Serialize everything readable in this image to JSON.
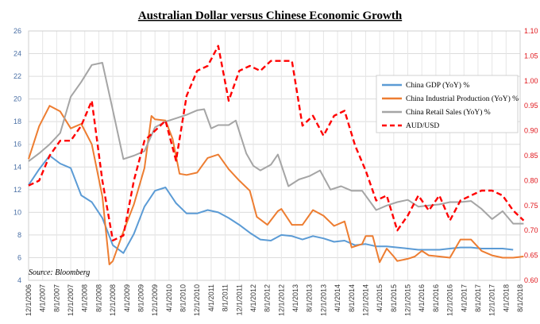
{
  "chart_data": {
    "type": "line",
    "title": "Australian Dollar versus Chinese Economic Growth",
    "source": "Source: Bloomberg",
    "x_tick_labels": [
      "12/1/2006",
      "4/1/2007",
      "8/1/2007",
      "12/1/2007",
      "4/1/2008",
      "8/1/2008",
      "12/1/2008",
      "4/1/2009",
      "8/1/2009",
      "12/1/2009",
      "4/1/2010",
      "8/1/2010",
      "12/1/2010",
      "4/1/2011",
      "8/1/2011",
      "12/1/2011",
      "4/1/2012",
      "8/1/2012",
      "12/1/2012",
      "4/1/2013",
      "8/1/2013",
      "12/1/2013",
      "4/1/2014",
      "8/1/2014",
      "12/1/2014",
      "4/1/2015",
      "8/1/2015",
      "12/1/2015",
      "4/1/2016",
      "8/1/2016",
      "12/1/2016",
      "4/1/2017",
      "8/1/2017",
      "12/1/2017",
      "4/1/2018",
      "8/1/2018"
    ],
    "left_axis": {
      "min": 4,
      "max": 26,
      "ticks": [
        4,
        6,
        8,
        10,
        12,
        14,
        16,
        18,
        20,
        22,
        24,
        26
      ]
    },
    "right_axis": {
      "min": 0.6,
      "max": 1.1,
      "ticks": [
        "0.60",
        "0.65",
        "0.70",
        "0.75",
        "0.80",
        "0.85",
        "0.90",
        "0.95",
        "1.00",
        "1.05",
        "1.10"
      ]
    },
    "grid": true,
    "legend_position": "right",
    "series": [
      {
        "name": "China GDP (YoY) %",
        "color": "#5b9bd5",
        "axis": "left",
        "style": "solid",
        "points": [
          [
            "12/1/2006",
            12.4
          ],
          [
            "3/1/2007",
            13.8
          ],
          [
            "6/1/2007",
            15.0
          ],
          [
            "9/1/2007",
            14.3
          ],
          [
            "12/1/2007",
            13.9
          ],
          [
            "3/1/2008",
            11.5
          ],
          [
            "6/1/2008",
            10.9
          ],
          [
            "9/1/2008",
            9.5
          ],
          [
            "12/1/2008",
            7.1
          ],
          [
            "3/1/2009",
            6.4
          ],
          [
            "6/1/2009",
            8.1
          ],
          [
            "9/1/2009",
            10.5
          ],
          [
            "12/1/2009",
            11.9
          ],
          [
            "3/1/2010",
            12.2
          ],
          [
            "6/1/2010",
            10.8
          ],
          [
            "9/1/2010",
            9.9
          ],
          [
            "12/1/2010",
            9.9
          ],
          [
            "3/1/2011",
            10.2
          ],
          [
            "6/1/2011",
            10.0
          ],
          [
            "9/1/2011",
            9.5
          ],
          [
            "12/1/2011",
            8.9
          ],
          [
            "3/1/2012",
            8.2
          ],
          [
            "6/1/2012",
            7.6
          ],
          [
            "9/1/2012",
            7.5
          ],
          [
            "12/1/2012",
            8.0
          ],
          [
            "3/1/2013",
            7.9
          ],
          [
            "6/1/2013",
            7.6
          ],
          [
            "9/1/2013",
            7.9
          ],
          [
            "12/1/2013",
            7.7
          ],
          [
            "3/1/2014",
            7.4
          ],
          [
            "6/1/2014",
            7.5
          ],
          [
            "9/1/2014",
            7.1
          ],
          [
            "12/1/2014",
            7.2
          ],
          [
            "3/1/2015",
            7.0
          ],
          [
            "6/1/2015",
            7.0
          ],
          [
            "9/1/2015",
            6.9
          ],
          [
            "12/1/2015",
            6.8
          ],
          [
            "3/1/2016",
            6.7
          ],
          [
            "6/1/2016",
            6.7
          ],
          [
            "9/1/2016",
            6.7
          ],
          [
            "12/1/2016",
            6.8
          ],
          [
            "3/1/2017",
            6.9
          ],
          [
            "6/1/2017",
            6.9
          ],
          [
            "9/1/2017",
            6.8
          ],
          [
            "12/1/2017",
            6.8
          ],
          [
            "3/1/2018",
            6.8
          ],
          [
            "6/1/2018",
            6.7
          ]
        ]
      },
      {
        "name": "China Industrial Production (YoY) %",
        "color": "#ed7d31",
        "axis": "left",
        "style": "solid",
        "points": [
          [
            "12/1/2006",
            14.7
          ],
          [
            "3/1/2007",
            17.6
          ],
          [
            "6/1/2007",
            19.4
          ],
          [
            "9/1/2007",
            18.9
          ],
          [
            "12/1/2007",
            17.4
          ],
          [
            "3/1/2008",
            17.8
          ],
          [
            "6/1/2008",
            16.0
          ],
          [
            "9/1/2008",
            11.4
          ],
          [
            "11/1/2008",
            5.4
          ],
          [
            "12/1/2008",
            5.7
          ],
          [
            "3/1/2009",
            8.3
          ],
          [
            "6/1/2009",
            10.7
          ],
          [
            "9/1/2009",
            13.9
          ],
          [
            "11/1/2009",
            18.5
          ],
          [
            "12/1/2009",
            18.2
          ],
          [
            "3/1/2010",
            18.1
          ],
          [
            "5/1/2010",
            16.5
          ],
          [
            "7/1/2010",
            13.4
          ],
          [
            "9/1/2010",
            13.3
          ],
          [
            "12/1/2010",
            13.5
          ],
          [
            "3/1/2011",
            14.8
          ],
          [
            "6/1/2011",
            15.1
          ],
          [
            "9/1/2011",
            13.8
          ],
          [
            "12/1/2011",
            12.8
          ],
          [
            "3/1/2012",
            11.9
          ],
          [
            "5/1/2012",
            9.6
          ],
          [
            "8/1/2012",
            8.9
          ],
          [
            "11/1/2012",
            10.1
          ],
          [
            "12/1/2012",
            10.3
          ],
          [
            "3/1/2013",
            8.9
          ],
          [
            "6/1/2013",
            8.9
          ],
          [
            "9/1/2013",
            10.2
          ],
          [
            "12/1/2013",
            9.7
          ],
          [
            "3/1/2014",
            8.8
          ],
          [
            "6/1/2014",
            9.2
          ],
          [
            "8/1/2014",
            6.9
          ],
          [
            "11/1/2014",
            7.2
          ],
          [
            "12/1/2014",
            7.9
          ],
          [
            "2/1/2015",
            7.9
          ],
          [
            "4/1/2015",
            5.6
          ],
          [
            "6/1/2015",
            6.8
          ],
          [
            "8/1/2015",
            6.1
          ],
          [
            "9/1/2015",
            5.7
          ],
          [
            "12/1/2015",
            5.9
          ],
          [
            "2/1/2016",
            6.1
          ],
          [
            "4/1/2016",
            6.6
          ],
          [
            "6/1/2016",
            6.2
          ],
          [
            "9/1/2016",
            6.1
          ],
          [
            "12/1/2016",
            6.0
          ],
          [
            "3/1/2017",
            7.6
          ],
          [
            "6/1/2017",
            7.6
          ],
          [
            "9/1/2017",
            6.6
          ],
          [
            "12/1/2017",
            6.2
          ],
          [
            "3/1/2018",
            6.0
          ],
          [
            "6/1/2018",
            6.0
          ],
          [
            "9/1/2018",
            6.1
          ]
        ]
      },
      {
        "name": "China Retail Sales (YoY) %",
        "color": "#a5a5a5",
        "axis": "left",
        "style": "solid",
        "points": [
          [
            "12/1/2006",
            14.5
          ],
          [
            "3/1/2007",
            15.2
          ],
          [
            "6/1/2007",
            16.0
          ],
          [
            "9/1/2007",
            17.0
          ],
          [
            "12/1/2007",
            20.2
          ],
          [
            "3/1/2008",
            21.5
          ],
          [
            "6/1/2008",
            23.0
          ],
          [
            "9/1/2008",
            23.2
          ],
          [
            "12/1/2008",
            19.0
          ],
          [
            "3/1/2009",
            14.7
          ],
          [
            "6/1/2009",
            15.0
          ],
          [
            "9/1/2009",
            15.4
          ],
          [
            "12/1/2009",
            17.5
          ],
          [
            "3/1/2010",
            18.0
          ],
          [
            "6/1/2010",
            18.3
          ],
          [
            "9/1/2010",
            18.6
          ],
          [
            "12/1/2010",
            19.0
          ],
          [
            "2/1/2011",
            19.1
          ],
          [
            "4/1/2011",
            17.4
          ],
          [
            "6/1/2011",
            17.7
          ],
          [
            "9/1/2011",
            17.7
          ],
          [
            "11/1/2011",
            18.1
          ],
          [
            "2/1/2012",
            15.2
          ],
          [
            "4/1/2012",
            14.1
          ],
          [
            "6/1/2012",
            13.7
          ],
          [
            "9/1/2012",
            14.2
          ],
          [
            "11/1/2012",
            15.1
          ],
          [
            "2/1/2013",
            12.3
          ],
          [
            "5/1/2013",
            12.9
          ],
          [
            "8/1/2013",
            13.2
          ],
          [
            "11/1/2013",
            13.7
          ],
          [
            "2/1/2014",
            12.0
          ],
          [
            "5/1/2014",
            12.3
          ],
          [
            "8/1/2014",
            11.9
          ],
          [
            "11/1/2014",
            11.9
          ],
          [
            "3/1/2015",
            10.2
          ],
          [
            "6/1/2015",
            10.6
          ],
          [
            "9/1/2015",
            10.9
          ],
          [
            "12/1/2015",
            11.1
          ],
          [
            "3/1/2016",
            10.5
          ],
          [
            "6/1/2016",
            10.6
          ],
          [
            "9/1/2016",
            10.7
          ],
          [
            "12/1/2016",
            10.9
          ],
          [
            "3/1/2017",
            10.9
          ],
          [
            "6/1/2017",
            11.0
          ],
          [
            "9/1/2017",
            10.3
          ],
          [
            "12/1/2017",
            9.4
          ],
          [
            "3/1/2018",
            10.1
          ],
          [
            "6/1/2018",
            9.0
          ],
          [
            "9/1/2018",
            9.0
          ]
        ]
      },
      {
        "name": "AUD/USD",
        "color": "#ff0000",
        "axis": "right",
        "style": "dashed",
        "points": [
          [
            "12/1/2006",
            0.79
          ],
          [
            "3/1/2007",
            0.8
          ],
          [
            "6/1/2007",
            0.85
          ],
          [
            "9/1/2007",
            0.88
          ],
          [
            "12/1/2007",
            0.88
          ],
          [
            "3/1/2008",
            0.91
          ],
          [
            "6/1/2008",
            0.96
          ],
          [
            "9/1/2008",
            0.8
          ],
          [
            "12/1/2008",
            0.68
          ],
          [
            "3/1/2009",
            0.69
          ],
          [
            "6/1/2009",
            0.8
          ],
          [
            "9/1/2009",
            0.88
          ],
          [
            "12/1/2009",
            0.9
          ],
          [
            "3/1/2010",
            0.92
          ],
          [
            "6/1/2010",
            0.84
          ],
          [
            "9/1/2010",
            0.97
          ],
          [
            "12/1/2010",
            1.02
          ],
          [
            "3/1/2011",
            1.03
          ],
          [
            "6/1/2011",
            1.07
          ],
          [
            "9/1/2011",
            0.96
          ],
          [
            "12/1/2011",
            1.02
          ],
          [
            "3/1/2012",
            1.03
          ],
          [
            "6/1/2012",
            1.02
          ],
          [
            "9/1/2012",
            1.04
          ],
          [
            "12/1/2012",
            1.04
          ],
          [
            "3/1/2013",
            1.04
          ],
          [
            "6/1/2013",
            0.91
          ],
          [
            "9/1/2013",
            0.93
          ],
          [
            "12/1/2013",
            0.89
          ],
          [
            "3/1/2014",
            0.93
          ],
          [
            "6/1/2014",
            0.94
          ],
          [
            "9/1/2014",
            0.87
          ],
          [
            "12/1/2014",
            0.82
          ],
          [
            "3/1/2015",
            0.76
          ],
          [
            "6/1/2015",
            0.77
          ],
          [
            "9/1/2015",
            0.7
          ],
          [
            "12/1/2015",
            0.73
          ],
          [
            "3/1/2016",
            0.77
          ],
          [
            "6/1/2016",
            0.74
          ],
          [
            "9/1/2016",
            0.77
          ],
          [
            "12/1/2016",
            0.72
          ],
          [
            "3/1/2017",
            0.76
          ],
          [
            "6/1/2017",
            0.77
          ],
          [
            "9/1/2017",
            0.78
          ],
          [
            "12/1/2017",
            0.78
          ],
          [
            "3/1/2018",
            0.77
          ],
          [
            "6/1/2018",
            0.74
          ],
          [
            "9/1/2018",
            0.72
          ]
        ]
      }
    ]
  }
}
